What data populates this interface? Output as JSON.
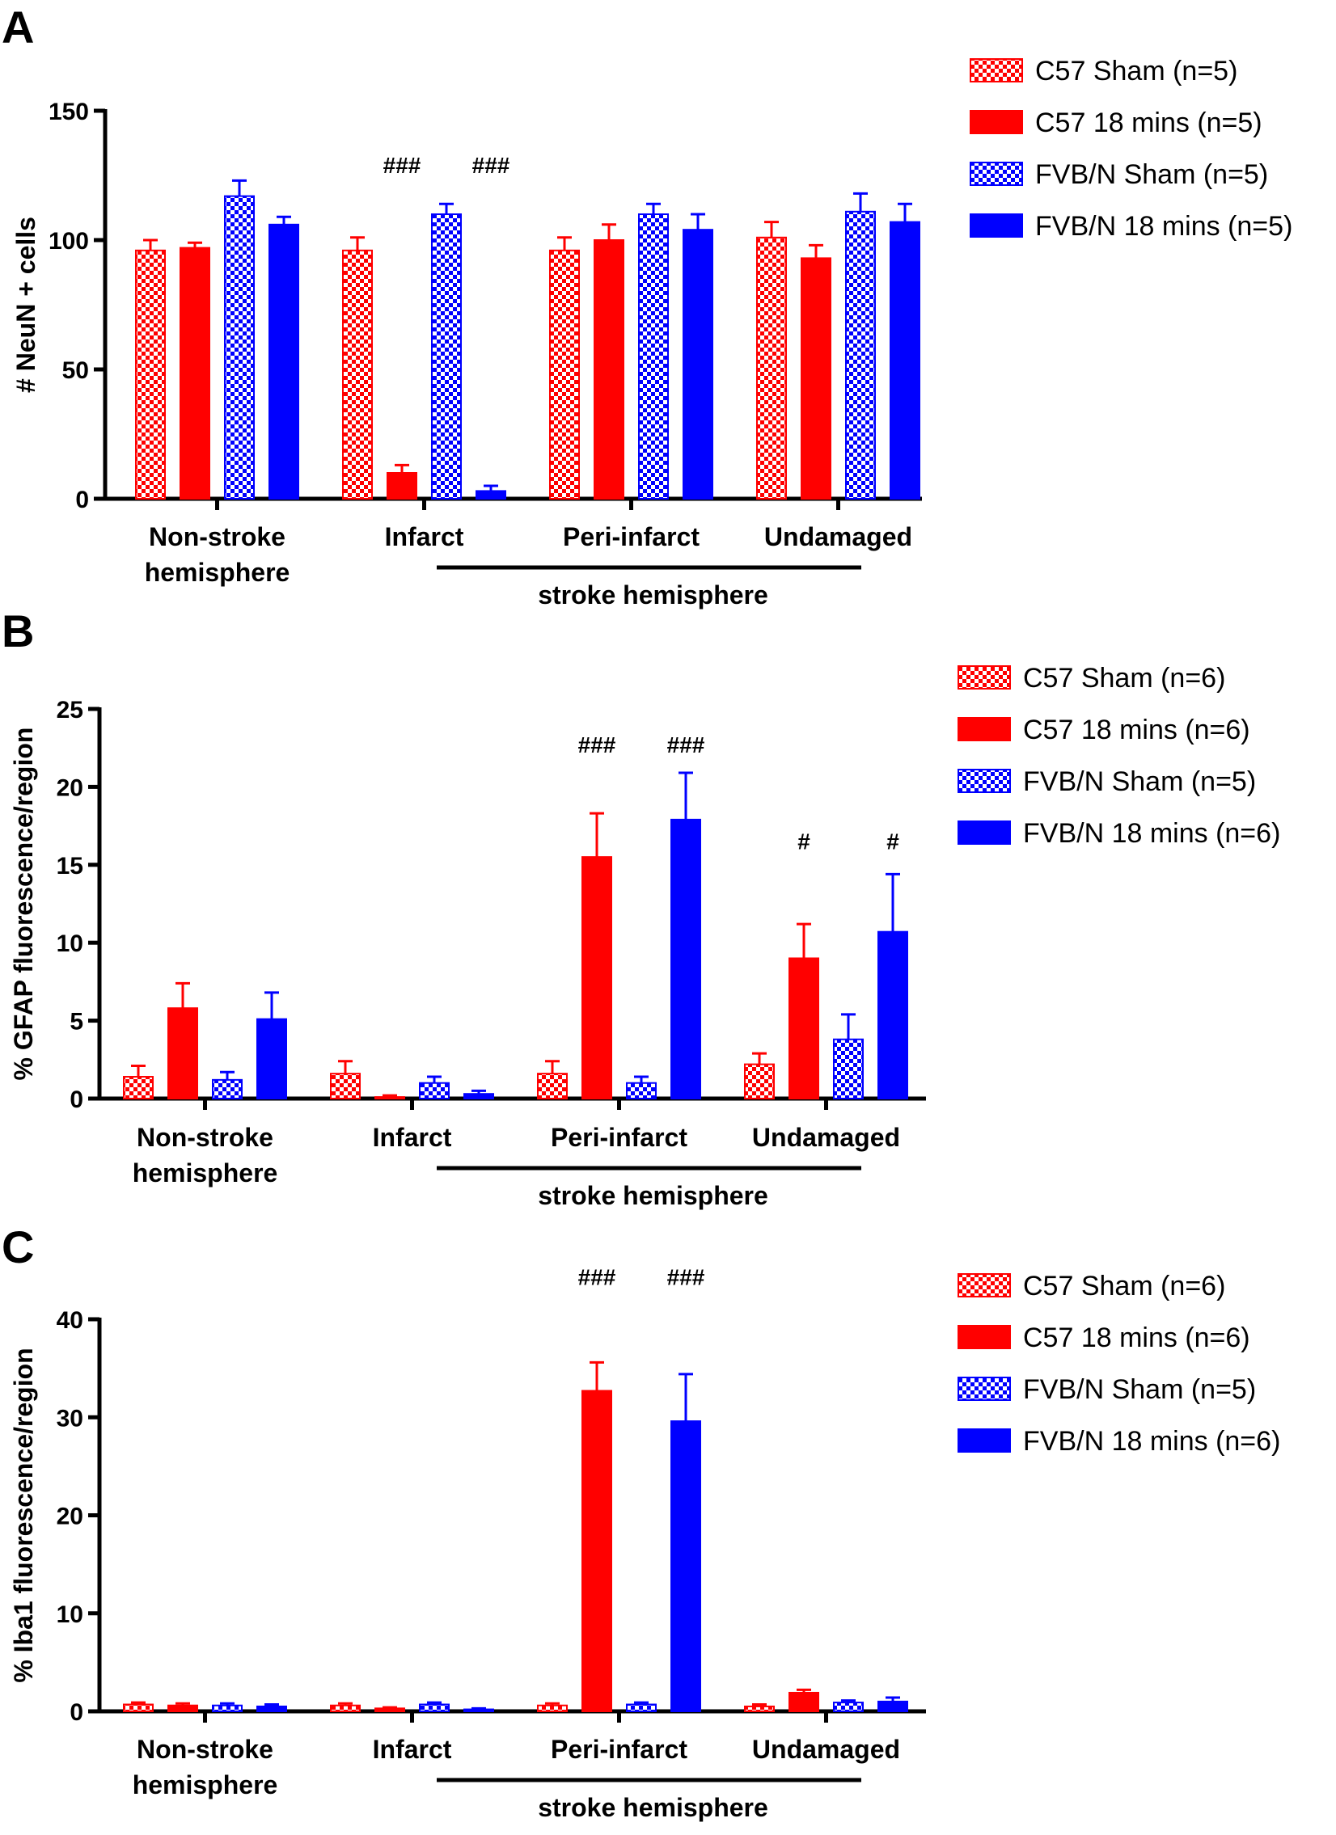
{
  "colors": {
    "red": "#ff0000",
    "blue": "#0000ff",
    "axis": "#000000"
  },
  "chart_data": [
    {
      "panel": "A",
      "type": "bar",
      "ylabel": "# NeuN + cells",
      "ylim": [
        0,
        150
      ],
      "yticks": [
        0,
        50,
        100,
        150
      ],
      "categories": [
        "Non-stroke hemisphere",
        "Infarct",
        "Peri-infarct",
        "Undamaged"
      ],
      "category_lines": [
        [
          "Non-stroke",
          "hemisphere"
        ],
        [
          "Infarct"
        ],
        [
          "Peri-infarct"
        ],
        [
          "Undamaged"
        ]
      ],
      "group_label": "stroke hemisphere",
      "series": [
        {
          "name": "C57 Sham (n=5)",
          "color": "red",
          "pattern": "checker",
          "values": [
            96,
            96,
            96,
            101
          ],
          "errors": [
            4,
            5,
            5,
            6
          ]
        },
        {
          "name": "C57 18 mins (n=5)",
          "color": "red",
          "pattern": "solid",
          "values": [
            97,
            10,
            100,
            93
          ],
          "errors": [
            2,
            3,
            6,
            5
          ]
        },
        {
          "name": "FVB/N Sham (n=5)",
          "color": "blue",
          "pattern": "checker",
          "values": [
            117,
            110,
            110,
            111
          ],
          "errors": [
            6,
            4,
            4,
            7
          ]
        },
        {
          "name": "FVB/N 18 mins (n=5)",
          "color": "blue",
          "pattern": "solid",
          "values": [
            106,
            3,
            104,
            107
          ],
          "errors": [
            3,
            2,
            6,
            7
          ]
        }
      ],
      "annotations": [
        {
          "text": "###",
          "category": 1,
          "series": 1,
          "value": 126
        },
        {
          "text": "###",
          "category": 1,
          "series": 3,
          "value": 126
        }
      ]
    },
    {
      "panel": "B",
      "type": "bar",
      "ylabel": "% GFAP fluorescence/region",
      "ylim": [
        0,
        25
      ],
      "yticks": [
        0,
        5,
        10,
        15,
        20,
        25
      ],
      "categories": [
        "Non-stroke hemisphere",
        "Infarct",
        "Peri-infarct",
        "Undamaged"
      ],
      "category_lines": [
        [
          "Non-stroke",
          "hemisphere"
        ],
        [
          "Infarct"
        ],
        [
          "Peri-infarct"
        ],
        [
          "Undamaged"
        ]
      ],
      "group_label": "stroke hemisphere",
      "series": [
        {
          "name": "C57 Sham (n=6)",
          "color": "red",
          "pattern": "checker",
          "values": [
            1.4,
            1.6,
            1.6,
            2.2
          ],
          "errors": [
            0.7,
            0.8,
            0.8,
            0.7
          ]
        },
        {
          "name": "C57 18 mins (n=6)",
          "color": "red",
          "pattern": "solid",
          "values": [
            5.8,
            0.1,
            15.5,
            9.0
          ],
          "errors": [
            1.6,
            0.1,
            2.8,
            2.2
          ]
        },
        {
          "name": "FVB/N Sham (n=5)",
          "color": "blue",
          "pattern": "checker",
          "values": [
            1.2,
            1.0,
            1.0,
            3.8
          ],
          "errors": [
            0.5,
            0.4,
            0.4,
            1.6
          ]
        },
        {
          "name": "FVB/N 18 mins (n=6)",
          "color": "blue",
          "pattern": "solid",
          "values": [
            5.1,
            0.3,
            17.9,
            10.7
          ],
          "errors": [
            1.7,
            0.2,
            3.0,
            3.7
          ]
        }
      ],
      "annotations": [
        {
          "text": "###",
          "category": 2,
          "series": 1,
          "value": 22.2
        },
        {
          "text": "###",
          "category": 2,
          "series": 3,
          "value": 22.2
        },
        {
          "text": "#",
          "category": 3,
          "series": 1,
          "value": 16.0
        },
        {
          "text": "#",
          "category": 3,
          "series": 3,
          "value": 16.0
        }
      ]
    },
    {
      "panel": "C",
      "type": "bar",
      "ylabel": "% Iba1 fluorescence/region",
      "ylim": [
        0,
        40
      ],
      "yticks": [
        0,
        10,
        20,
        30,
        40
      ],
      "categories": [
        "Non-stroke hemisphere",
        "Infarct",
        "Peri-infarct",
        "Undamaged"
      ],
      "category_lines": [
        [
          "Non-stroke",
          "hemisphere"
        ],
        [
          "Infarct"
        ],
        [
          "Peri-infarct"
        ],
        [
          "Undamaged"
        ]
      ],
      "group_label": "stroke hemisphere",
      "series": [
        {
          "name": "C57 Sham (n=6)",
          "color": "red",
          "pattern": "checker",
          "values": [
            0.7,
            0.6,
            0.6,
            0.5
          ],
          "errors": [
            0.2,
            0.2,
            0.2,
            0.2
          ]
        },
        {
          "name": "C57 18 mins (n=6)",
          "color": "red",
          "pattern": "solid",
          "values": [
            0.6,
            0.3,
            32.7,
            1.9
          ],
          "errors": [
            0.2,
            0.1,
            2.9,
            0.3
          ]
        },
        {
          "name": "FVB/N Sham (n=5)",
          "color": "blue",
          "pattern": "checker",
          "values": [
            0.6,
            0.7,
            0.7,
            0.9
          ],
          "errors": [
            0.2,
            0.2,
            0.2,
            0.2
          ]
        },
        {
          "name": "FVB/N 18 mins (n=6)",
          "color": "blue",
          "pattern": "solid",
          "values": [
            0.5,
            0.2,
            29.6,
            1.0
          ],
          "errors": [
            0.2,
            0.1,
            4.8,
            0.4
          ]
        }
      ],
      "annotations": [
        {
          "text": "###",
          "category": 2,
          "series": 1,
          "value": 43.5
        },
        {
          "text": "###",
          "category": 2,
          "series": 3,
          "value": 43.5
        }
      ]
    }
  ]
}
